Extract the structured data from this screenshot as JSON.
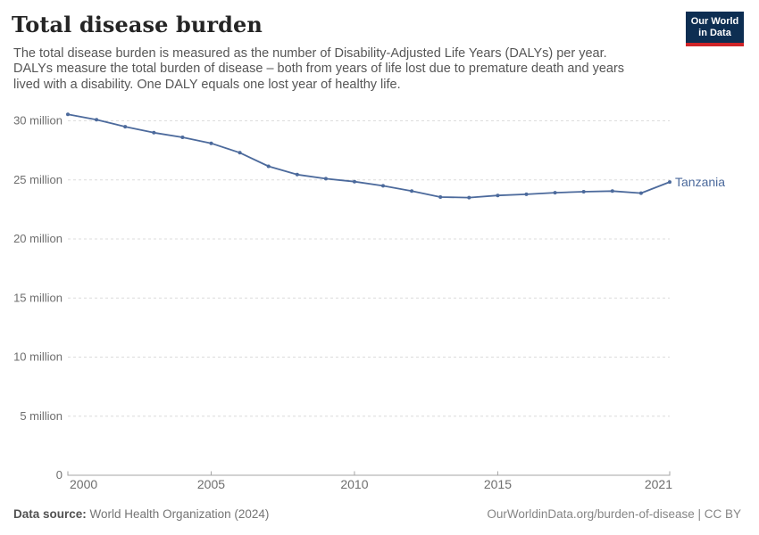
{
  "header": {
    "title": "Total disease burden",
    "subtitle_lines": [
      "The total disease burden is measured as the number of Disability-Adjusted Life Years (DALYs) per year.",
      "DALYs measure the total burden of disease – both from years of life lost due to premature death and years",
      "lived with a disability. One DALY equals one lost year of healthy life."
    ],
    "logo": {
      "line1": "Our World",
      "line2": "in Data",
      "bg_color": "#0d2e52",
      "stripe_color": "#cf2428"
    }
  },
  "chart_data": {
    "type": "line",
    "title": "Total disease burden",
    "ylabel": "",
    "xlabel": "",
    "unit": "DALYs (Disability-Adjusted Life Years) per year, millions",
    "grid": "horizontal-dashed",
    "legend_position": "end-of-line-label",
    "entity_label": "Tanzania",
    "x": [
      2000,
      2001,
      2002,
      2003,
      2004,
      2005,
      2006,
      2007,
      2008,
      2009,
      2010,
      2011,
      2012,
      2013,
      2014,
      2015,
      2016,
      2017,
      2018,
      2019,
      2020,
      2021
    ],
    "series": [
      {
        "name": "Tanzania",
        "color": "#4C6A9C",
        "values_millions": [
          30.55,
          30.1,
          29.5,
          29.0,
          28.6,
          28.1,
          27.3,
          26.15,
          25.45,
          25.1,
          24.85,
          24.5,
          24.05,
          23.55,
          23.5,
          23.68,
          23.78,
          23.92,
          24.0,
          24.05,
          23.88,
          24.82
        ]
      }
    ],
    "ylim_millions": [
      0,
      30
    ],
    "yticks": [
      {
        "value_millions": 0,
        "label": "0"
      },
      {
        "value_millions": 5,
        "label": "5 million"
      },
      {
        "value_millions": 10,
        "label": "10 million"
      },
      {
        "value_millions": 15,
        "label": "15 million"
      },
      {
        "value_millions": 20,
        "label": "20 million"
      },
      {
        "value_millions": 25,
        "label": "25 million"
      },
      {
        "value_millions": 30,
        "label": "30 million"
      }
    ],
    "xticks": [
      {
        "year": 2000,
        "label": "2000",
        "align": "start"
      },
      {
        "year": 2005,
        "label": "2005",
        "align": "middle"
      },
      {
        "year": 2010,
        "label": "2010",
        "align": "middle"
      },
      {
        "year": 2015,
        "label": "2015",
        "align": "middle"
      },
      {
        "year": 2021,
        "label": "2021",
        "align": "end"
      }
    ]
  },
  "colors": {
    "line": "#4C6A9C",
    "grid": "#dcdcdc",
    "axis": "#a5a5a5",
    "axis_text": "#6e6e6e",
    "logo_bg": "#0d2e52",
    "logo_stripe": "#cf2428"
  },
  "footer": {
    "source_label": "Data source:",
    "source_value": " World Health Organization (2024)",
    "link": "OurWorldinData.org/burden-of-disease | CC BY"
  }
}
